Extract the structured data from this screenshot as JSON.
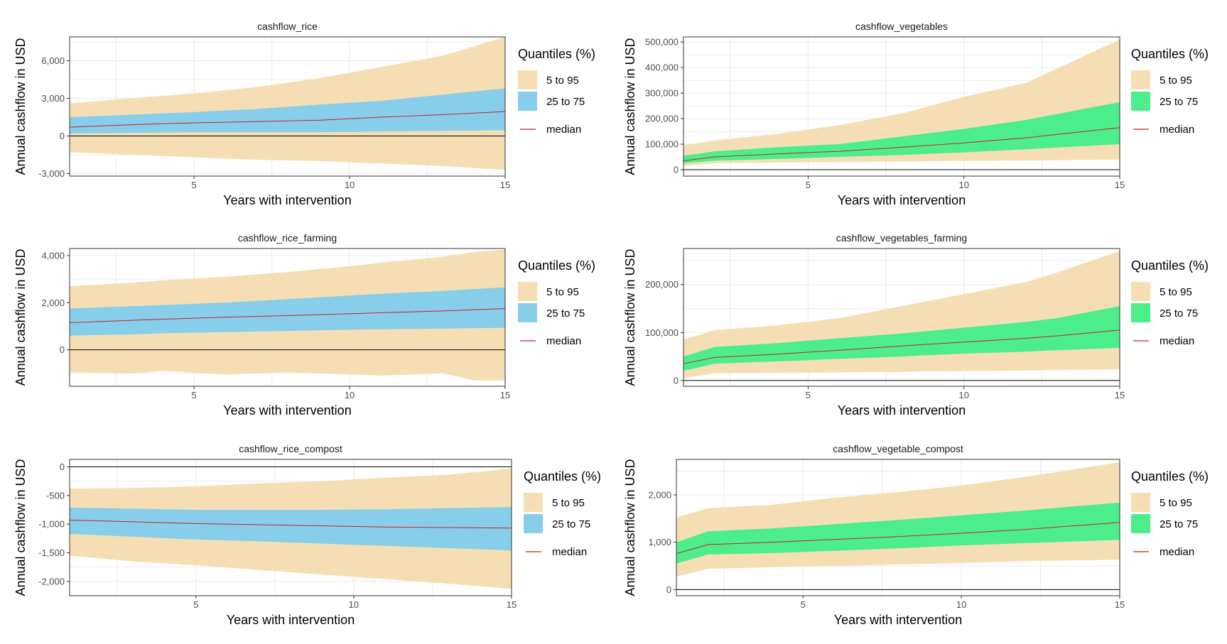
{
  "legend": {
    "title": "Quantiles (%)",
    "outer_label": "5 to 95",
    "inner_label": "25 to 75",
    "median_label": "median"
  },
  "colors": {
    "outer": "#F5DEB3",
    "inner_rice": "#87CEEB",
    "inner_vegetables": "#4CEE8C",
    "median": "#CC2222",
    "zero_line": "#000000",
    "grid": "#EBEBEB"
  },
  "chart_data": [
    {
      "type": "area",
      "title": "cashflow_rice",
      "xlabel": "Years with intervention",
      "ylabel": "Annual cashflow in USD",
      "inner_color": "inner_rice",
      "xlim": [
        1,
        15
      ],
      "ylim": [
        -3200,
        7900
      ],
      "x_ticks": [
        5,
        10,
        15
      ],
      "y_ticks": [
        -3000,
        0,
        3000,
        6000
      ],
      "y_tick_labels": [
        "-3,000",
        "0",
        "3,000",
        "6,000"
      ],
      "x": [
        1,
        3,
        5,
        7,
        9,
        11,
        13,
        15
      ],
      "q05": [
        -1300,
        -1500,
        -1700,
        -1900,
        -2000,
        -2200,
        -2400,
        -2700
      ],
      "q25": [
        200,
        250,
        300,
        300,
        300,
        350,
        400,
        450
      ],
      "median": [
        700,
        900,
        1050,
        1150,
        1250,
        1500,
        1700,
        1950
      ],
      "q75": [
        1500,
        1700,
        1900,
        2150,
        2500,
        2800,
        3300,
        3800
      ],
      "q95": [
        2600,
        3000,
        3400,
        3900,
        4600,
        5500,
        6400,
        7900
      ]
    },
    {
      "type": "area",
      "title": "cashflow_vegetables",
      "xlabel": "Years with intervention",
      "ylabel": "Annual cashflow in USD",
      "inner_color": "inner_vegetables",
      "xlim": [
        1,
        15
      ],
      "ylim": [
        -25000,
        520000
      ],
      "x_ticks": [
        5,
        10,
        15
      ],
      "y_ticks": [
        0,
        100000,
        200000,
        300000,
        400000,
        500000
      ],
      "y_tick_labels": [
        "0",
        "100,000",
        "200,000",
        "300,000",
        "400,000",
        "500,000"
      ],
      "x": [
        1,
        2,
        4,
        6,
        8,
        10,
        12,
        15
      ],
      "q05": [
        15000,
        25000,
        28000,
        30000,
        32000,
        35000,
        36000,
        40000
      ],
      "q25": [
        25000,
        35000,
        42000,
        50000,
        58000,
        68000,
        80000,
        100000
      ],
      "median": [
        35000,
        50000,
        62000,
        72000,
        88000,
        105000,
        125000,
        165000
      ],
      "q75": [
        55000,
        72000,
        88000,
        100000,
        130000,
        160000,
        195000,
        265000
      ],
      "q95": [
        95000,
        115000,
        140000,
        175000,
        220000,
        285000,
        340000,
        510000
      ]
    },
    {
      "type": "area",
      "title": "cashflow_rice_farming",
      "xlabel": "Years with intervention",
      "ylabel": "Annual cashflow in USD",
      "inner_color": "inner_rice",
      "xlim": [
        1,
        15
      ],
      "ylim": [
        -1550,
        4300
      ],
      "x_ticks": [
        5,
        10,
        15
      ],
      "y_ticks": [
        0,
        2000,
        4000
      ],
      "y_tick_labels": [
        "0",
        "2,000",
        "4,000"
      ],
      "x": [
        1,
        3,
        4,
        6,
        8,
        10,
        11,
        13,
        14,
        15
      ],
      "q05": [
        -950,
        -1000,
        -900,
        -1050,
        -950,
        -1050,
        -1100,
        -1000,
        -1300,
        -1300
      ],
      "q25": [
        600,
        650,
        700,
        750,
        800,
        850,
        870,
        900,
        920,
        930
      ],
      "median": [
        1150,
        1250,
        1300,
        1380,
        1450,
        1530,
        1570,
        1650,
        1700,
        1750
      ],
      "q75": [
        1750,
        1850,
        1900,
        2000,
        2150,
        2300,
        2380,
        2500,
        2580,
        2650
      ],
      "q95": [
        2700,
        2850,
        2950,
        3100,
        3300,
        3550,
        3700,
        3950,
        4150,
        4250
      ]
    },
    {
      "type": "area",
      "title": "cashflow_vegetables_farming",
      "xlabel": "Years with intervention",
      "ylabel": "Annual cashflow in USD",
      "inner_color": "inner_vegetables",
      "xlim": [
        1,
        15
      ],
      "ylim": [
        -12000,
        275000
      ],
      "x_ticks": [
        5,
        10,
        15
      ],
      "y_ticks": [
        0,
        100000,
        200000
      ],
      "y_tick_labels": [
        "0",
        "100,000",
        "200,000"
      ],
      "x": [
        1,
        2,
        4,
        6,
        8,
        10,
        12,
        13,
        15
      ],
      "q05": [
        5000,
        15000,
        16000,
        17000,
        18000,
        20000,
        21000,
        22000,
        23000
      ],
      "q25": [
        20000,
        35000,
        40000,
        45000,
        50000,
        56000,
        60000,
        63000,
        68000
      ],
      "median": [
        35000,
        48000,
        55000,
        63000,
        72000,
        80000,
        88000,
        93000,
        105000
      ],
      "q75": [
        50000,
        70000,
        78000,
        88000,
        98000,
        110000,
        122000,
        130000,
        155000
      ],
      "q95": [
        85000,
        105000,
        115000,
        130000,
        155000,
        180000,
        205000,
        225000,
        270000
      ]
    },
    {
      "type": "area",
      "title": "cashflow_rice_compost",
      "xlabel": "Years with intervention",
      "ylabel": "Annual cashflow in USD",
      "inner_color": "inner_rice",
      "xlim": [
        1,
        15
      ],
      "ylim": [
        -2250,
        130
      ],
      "x_ticks": [
        5,
        10,
        15
      ],
      "y_ticks": [
        -2000,
        -1500,
        -1000,
        -500,
        0
      ],
      "y_tick_labels": [
        "-2,000",
        "-1,500",
        "-1,000",
        "-500",
        "0"
      ],
      "x": [
        1,
        3,
        5,
        7,
        9,
        11,
        13,
        15
      ],
      "q05": [
        -1550,
        -1650,
        -1720,
        -1800,
        -1880,
        -1960,
        -2040,
        -2130
      ],
      "q25": [
        -1170,
        -1220,
        -1270,
        -1300,
        -1340,
        -1380,
        -1420,
        -1460
      ],
      "median": [
        -930,
        -960,
        -990,
        -1010,
        -1030,
        -1050,
        -1060,
        -1070
      ],
      "q75": [
        -710,
        -730,
        -750,
        -750,
        -750,
        -740,
        -720,
        -700
      ],
      "q95": [
        -380,
        -370,
        -340,
        -290,
        -250,
        -190,
        -140,
        -30
      ]
    },
    {
      "type": "area",
      "title": "cashflow_vegetable_compost",
      "xlabel": "Years with intervention",
      "ylabel": "Annual cashflow in USD",
      "inner_color": "inner_vegetables",
      "xlim": [
        1,
        15
      ],
      "ylim": [
        -130,
        2750
      ],
      "x_ticks": [
        5,
        10,
        15
      ],
      "y_ticks": [
        0,
        1000,
        2000
      ],
      "y_tick_labels": [
        "0",
        "1,000",
        "2,000"
      ],
      "x": [
        1,
        2,
        4,
        6,
        8,
        10,
        12,
        15
      ],
      "q05": [
        280,
        440,
        470,
        500,
        530,
        560,
        600,
        630
      ],
      "q25": [
        550,
        740,
        770,
        820,
        870,
        930,
        980,
        1050
      ],
      "median": [
        760,
        950,
        1000,
        1060,
        1120,
        1190,
        1270,
        1420
      ],
      "q75": [
        1000,
        1230,
        1290,
        1380,
        1470,
        1570,
        1670,
        1840
      ],
      "q95": [
        1520,
        1720,
        1790,
        1940,
        2060,
        2200,
        2380,
        2690
      ]
    }
  ]
}
